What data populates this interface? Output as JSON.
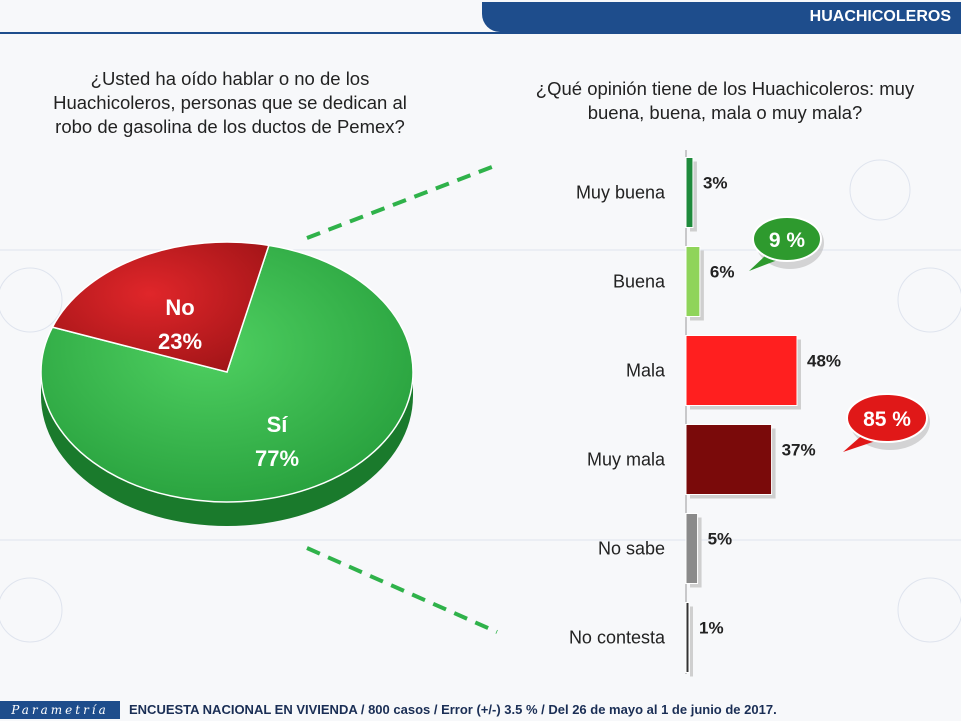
{
  "header": {
    "title": "HUACHICOLEROS"
  },
  "pie_question": "¿Usted ha oído hablar o no de los Huachicoleros, personas que se dedican al robo de gasolina de los ductos de Pemex?",
  "bar_question": "¿Qué opinión tiene de los Huachicoleros: muy buena, buena, mala o muy mala?",
  "chart_data": [
    {
      "type": "pie",
      "categories": [
        "Sí",
        "No"
      ],
      "values": [
        77,
        23
      ],
      "labels": [
        "77%",
        "23%"
      ],
      "colors": [
        "#2fb24a",
        "#c8191d"
      ]
    },
    {
      "type": "bar",
      "orientation": "horizontal",
      "categories": [
        "Muy buena",
        "Buena",
        "Mala",
        "Muy mala",
        "No sabe",
        "No contesta"
      ],
      "values": [
        3,
        6,
        48,
        37,
        5,
        1
      ],
      "labels": [
        "3%",
        "6%",
        "48%",
        "37%",
        "5%",
        "1%"
      ],
      "colors": [
        "#1f8a3c",
        "#8fd45a",
        "#ff1f1f",
        "#7a0a0a",
        "#8a8a8a",
        "#333333"
      ],
      "callouts": [
        {
          "text": "9 %",
          "color": "#2e9a2e"
        },
        {
          "text": "85 %",
          "color": "#e01818"
        }
      ]
    }
  ],
  "footer": {
    "logo": "Parametría",
    "text": "ENCUESTA NACIONAL EN VIVIENDA / 800 casos / Error (+/-) 3.5 % / Del 26 de mayo al 1 de junio de 2017."
  }
}
